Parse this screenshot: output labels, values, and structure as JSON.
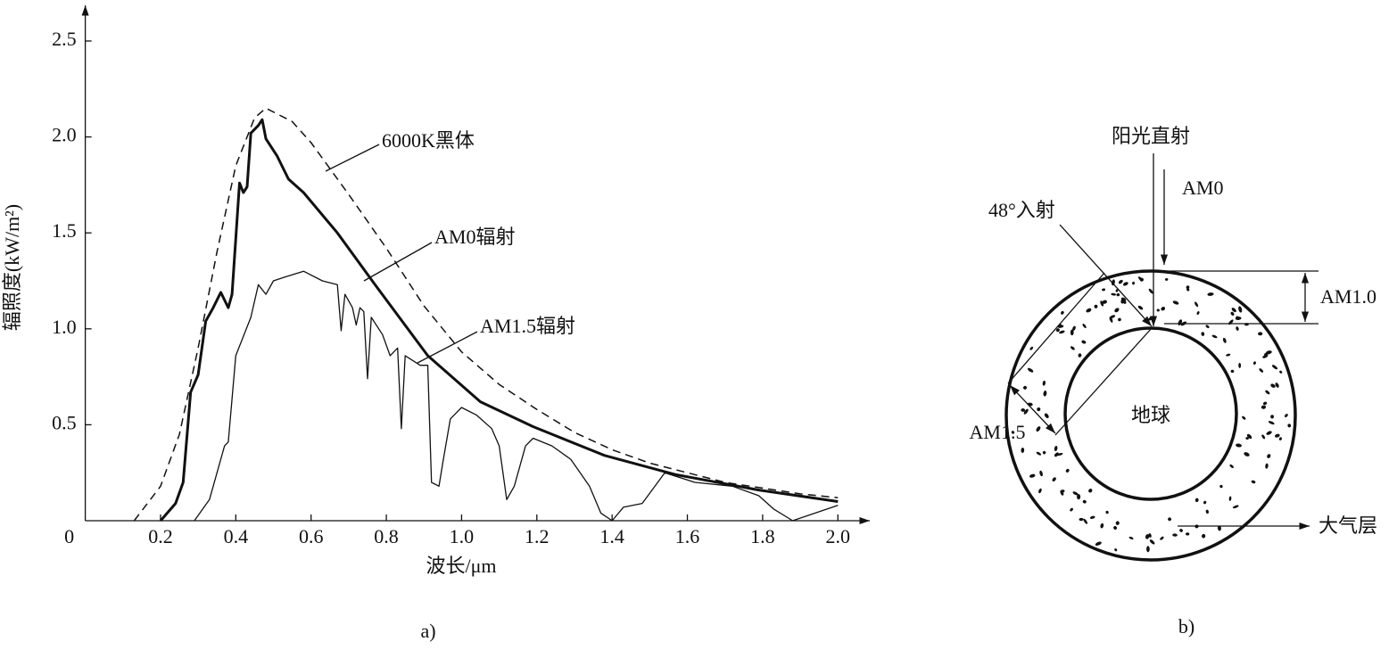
{
  "chart_data": {
    "type": "line",
    "x_label": "波长/μm",
    "y_label": "辐照度(kW/m²)",
    "caption": "a)",
    "xlim": [
      0,
      2.08
    ],
    "ylim": [
      0,
      2.67
    ],
    "xticks": [
      0,
      0.2,
      0.4,
      0.6,
      0.8,
      {
        "value": 1,
        "label": "1.0"
      },
      1.2,
      1.4,
      1.6,
      1.8,
      {
        "value": 2,
        "label": "2.0"
      }
    ],
    "yticks": [
      0.5,
      {
        "value": 1,
        "label": "1.0"
      },
      1.5,
      {
        "value": 2,
        "label": "2.0"
      },
      2.5
    ],
    "grid": false,
    "series": [
      {
        "name": "6000K黑体",
        "color": "#111111",
        "style": "dashed",
        "x": [
          0.13,
          0.2,
          0.25,
          0.3,
          0.35,
          0.4,
          0.45,
          0.48,
          0.55,
          0.6,
          0.7,
          0.8,
          0.9,
          1.0,
          1.1,
          1.2,
          1.3,
          1.4,
          1.5,
          1.6,
          1.7,
          1.8,
          1.9,
          2.0
        ],
        "values": [
          0,
          0.18,
          0.45,
          0.9,
          1.4,
          1.85,
          2.1,
          2.15,
          2.08,
          1.97,
          1.7,
          1.42,
          1.12,
          0.88,
          0.71,
          0.58,
          0.46,
          0.37,
          0.3,
          0.25,
          0.2,
          0.17,
          0.14,
          0.12
        ]
      },
      {
        "name": "AM0辐射",
        "color": "#111111",
        "style": "thick",
        "x": [
          0.2,
          0.24,
          0.26,
          0.28,
          0.3,
          0.32,
          0.34,
          0.36,
          0.38,
          0.39,
          0.41,
          0.42,
          0.43,
          0.44,
          0.46,
          0.47,
          0.48,
          0.51,
          0.54,
          0.58,
          0.67,
          0.77,
          0.91,
          1.05,
          1.19,
          1.38,
          1.57,
          1.79,
          2.0
        ],
        "values": [
          0,
          0.09,
          0.2,
          0.67,
          0.76,
          1.04,
          1.11,
          1.19,
          1.11,
          1.18,
          1.76,
          1.71,
          1.74,
          2.02,
          2.06,
          2.09,
          1.99,
          1.9,
          1.78,
          1.71,
          1.5,
          1.23,
          0.86,
          0.62,
          0.49,
          0.34,
          0.24,
          0.16,
          0.1
        ]
      },
      {
        "name": "AM1.5辐射",
        "color": "#111111",
        "style": "thin",
        "x": [
          0.29,
          0.33,
          0.37,
          0.38,
          0.4,
          0.44,
          0.46,
          0.48,
          0.5,
          0.53,
          0.58,
          0.63,
          0.67,
          0.68,
          0.69,
          0.71,
          0.72,
          0.73,
          0.74,
          0.75,
          0.76,
          0.79,
          0.81,
          0.83,
          0.84,
          0.85,
          0.89,
          0.91,
          0.92,
          0.94,
          0.95,
          0.97,
          1.0,
          1.04,
          1.08,
          1.1,
          1.12,
          1.14,
          1.17,
          1.19,
          1.24,
          1.29,
          1.34,
          1.37,
          1.4,
          1.43,
          1.48,
          1.54,
          1.62,
          1.72,
          1.79,
          1.83,
          1.88,
          2.0
        ],
        "values": [
          0,
          0.11,
          0.39,
          0.41,
          0.86,
          1.06,
          1.23,
          1.18,
          1.25,
          1.27,
          1.3,
          1.25,
          1.23,
          0.99,
          1.18,
          1.11,
          1.02,
          1.11,
          1.09,
          0.74,
          1.06,
          0.97,
          0.86,
          0.9,
          0.48,
          0.86,
          0.81,
          0.81,
          0.2,
          0.18,
          0.3,
          0.53,
          0.59,
          0.55,
          0.48,
          0.39,
          0.11,
          0.18,
          0.39,
          0.43,
          0.39,
          0.32,
          0.18,
          0.04,
          0,
          0.07,
          0.09,
          0.25,
          0.2,
          0.18,
          0.13,
          0.06,
          0,
          0.08
        ]
      }
    ]
  },
  "diagram": {
    "sunlight": "阳光直射",
    "am0": "AM0",
    "incidence": "48°入射",
    "am1_0": "AM1.0",
    "am1_5": "AM1.5",
    "earth": "地球",
    "atmosphere": "大气层",
    "caption": "b)"
  }
}
